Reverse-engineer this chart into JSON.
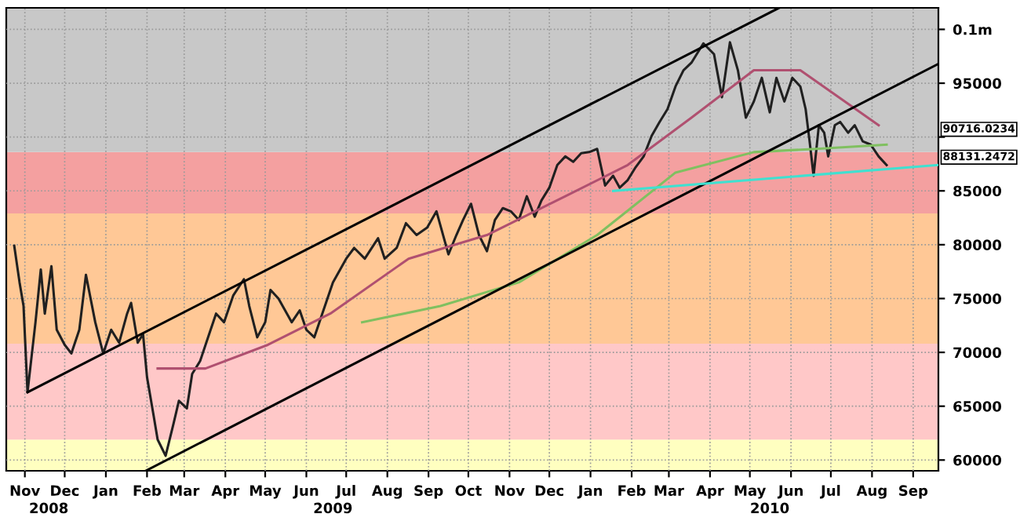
{
  "chart_data": {
    "type": "line",
    "x": [
      "2008-11-07",
      "2008-11-11",
      "2008-11-14",
      "2008-11-17",
      "2008-11-23",
      "2008-11-27",
      "2008-11-30",
      "2008-12-05",
      "2008-12-09",
      "2008-12-15",
      "2008-12-20",
      "2008-12-26",
      "2008-12-31",
      "2009-01-07",
      "2009-01-13",
      "2009-01-19",
      "2009-01-25",
      "2009-01-31",
      "2009-02-03",
      "2009-02-08",
      "2009-02-12",
      "2009-02-15",
      "2009-02-20",
      "2009-02-23",
      "2009-03-01",
      "2009-03-07",
      "2009-03-11",
      "2009-03-17",
      "2009-03-21",
      "2009-03-27",
      "2009-04-02",
      "2009-04-08",
      "2009-04-14",
      "2009-04-21",
      "2009-04-29",
      "2009-05-03",
      "2009-05-09",
      "2009-05-15",
      "2009-05-19",
      "2009-05-25",
      "2009-06-04",
      "2009-06-10",
      "2009-06-15",
      "2009-06-21",
      "2009-06-27",
      "2009-07-05",
      "2009-07-15",
      "2009-07-21",
      "2009-07-29",
      "2009-08-08",
      "2009-08-13",
      "2009-08-22",
      "2009-08-29",
      "2009-09-06",
      "2009-09-14",
      "2009-09-21",
      "2009-09-30",
      "2009-10-06",
      "2009-10-11",
      "2009-10-17",
      "2009-10-23",
      "2009-10-29",
      "2009-11-04",
      "2009-11-10",
      "2009-11-16",
      "2009-11-22",
      "2009-11-28",
      "2009-12-04",
      "2009-12-09",
      "2009-12-15",
      "2009-12-21",
      "2009-12-27",
      "2010-01-02",
      "2010-01-08",
      "2010-01-14",
      "2010-01-20",
      "2010-01-26",
      "2010-02-01",
      "2010-02-06",
      "2010-02-12",
      "2010-02-18",
      "2010-02-24",
      "2010-03-02",
      "2010-03-08",
      "2010-03-14",
      "2010-03-20",
      "2010-03-26",
      "2010-04-01",
      "2010-04-10",
      "2010-04-18",
      "2010-04-24",
      "2010-04-30",
      "2010-05-06",
      "2010-05-12",
      "2010-05-18",
      "2010-05-24",
      "2010-05-30",
      "2010-06-04",
      "2010-06-10",
      "2010-06-16",
      "2010-06-22",
      "2010-06-26",
      "2010-06-29",
      "2010-07-02",
      "2010-07-06",
      "2010-07-10",
      "2010-07-13",
      "2010-07-18",
      "2010-07-22",
      "2010-07-28",
      "2010-08-02",
      "2010-08-08",
      "2010-08-14",
      "2010-08-20",
      "2010-08-26"
    ],
    "series": [
      {
        "color": "#202020",
        "values": [
          79900,
          76500,
          74300,
          66300,
          72800,
          77700,
          73600,
          78000,
          72100,
          70700,
          69900,
          72100,
          77200,
          72800,
          69900,
          72100,
          70900,
          73600,
          74600,
          70900,
          71700,
          67700,
          64100,
          61900,
          60400,
          63400,
          65500,
          64800,
          68000,
          69200,
          71400,
          73600,
          72800,
          75300,
          76800,
          74300,
          71400,
          72800,
          75800,
          75000,
          72800,
          73900,
          72100,
          71400,
          73600,
          76500,
          78700,
          79700,
          78700,
          80600,
          78700,
          79700,
          82000,
          80900,
          81600,
          83100,
          79100,
          80900,
          82300,
          83800,
          80900,
          79400,
          82300,
          83400,
          83100,
          82300,
          84500,
          82600,
          84100,
          85300,
          87400,
          88200,
          87700,
          88500,
          88600,
          88900,
          85500,
          86400,
          85300,
          86000,
          87200,
          88200,
          90100,
          91400,
          92600,
          94700,
          96200,
          96900,
          98700,
          97700,
          93700,
          98800,
          96200,
          91800,
          93300,
          95500,
          92300,
          95500,
          93300,
          95500,
          94700,
          92600,
          89600,
          86400,
          91100,
          90400,
          88200,
          91100,
          91400,
          90400,
          91100,
          89600,
          89300,
          88200,
          87400
        ]
      },
      {
        "color": "#b05070",
        "x": [
          "2009-02-23",
          "2009-03-31",
          "2009-05-17",
          "2009-07-03",
          "2009-08-31",
          "2009-10-29",
          "2009-12-27",
          "2010-02-12",
          "2010-04-01",
          "2010-05-18",
          "2010-06-22",
          "2010-08-20"
        ],
        "values": [
          68500,
          68500,
          70700,
          73600,
          78700,
          80900,
          84500,
          87400,
          91800,
          96200,
          96200,
          91100
        ]
      },
      {
        "color": "#80c060",
        "x": [
          "2009-07-27",
          "2009-09-24",
          "2009-11-22",
          "2010-01-20",
          "2010-03-20",
          "2010-05-18",
          "2010-07-04",
          "2010-08-26"
        ],
        "values": [
          72800,
          74300,
          76500,
          80900,
          86700,
          88600,
          88900,
          89300
        ]
      },
      {
        "color": "#000000",
        "x": [
          "2008-11-17",
          "2010-06-06"
        ],
        "values": [
          66300,
          102000
        ]
      },
      {
        "color": "#000000",
        "x": [
          "2009-02-14",
          "2010-10-04"
        ],
        "values": [
          59000,
          96800
        ]
      },
      {
        "color": "#40e0d0",
        "x": [
          "2010-02-01",
          "2010-10-04"
        ],
        "values": [
          85000,
          87400
        ]
      }
    ],
    "bands": [
      {
        "axis": "y",
        "from": 59000,
        "to": 61900,
        "color": "#ffffc0"
      },
      {
        "axis": "y",
        "from": 61900,
        "to": 70800,
        "color": "#ffc8c8"
      },
      {
        "axis": "y",
        "from": 70800,
        "to": 82900,
        "color": "#ffc896"
      },
      {
        "axis": "y",
        "from": 82900,
        "to": 88600,
        "color": "#f4a0a0"
      },
      {
        "axis": "y",
        "from": 88600,
        "to": 102000,
        "color": "#c8c8c8"
      }
    ],
    "annotations": [
      {
        "text": "90716.0234",
        "x": "2010-10-04",
        "y": 90716
      },
      {
        "text": "88131.2472",
        "x": "2010-10-04",
        "y": 88131
      }
    ],
    "xlim": [
      "2008-11-01",
      "2010-10-04"
    ],
    "xticks": [
      {
        "value": "2008-11-15",
        "label": "Nov"
      },
      {
        "value": "2008-12-15",
        "label": "Dec"
      },
      {
        "value": "2009-01-15",
        "label": "Jan"
      },
      {
        "value": "2009-02-15",
        "label": "Feb"
      },
      {
        "value": "2009-03-15",
        "label": "Mar"
      },
      {
        "value": "2009-04-15",
        "label": "Apr"
      },
      {
        "value": "2009-05-15",
        "label": "May"
      },
      {
        "value": "2009-06-15",
        "label": "Jun"
      },
      {
        "value": "2009-07-15",
        "label": "Jul"
      },
      {
        "value": "2009-08-15",
        "label": "Aug"
      },
      {
        "value": "2009-09-15",
        "label": "Sep"
      },
      {
        "value": "2009-10-15",
        "label": "Oct"
      },
      {
        "value": "2009-11-15",
        "label": "Nov"
      },
      {
        "value": "2009-12-15",
        "label": "Dec"
      },
      {
        "value": "2010-01-15",
        "label": "Jan"
      },
      {
        "value": "2010-02-15",
        "label": "Feb"
      },
      {
        "value": "2010-03-15",
        "label": "Mar"
      },
      {
        "value": "2010-04-15",
        "label": "Apr"
      },
      {
        "value": "2010-05-15",
        "label": "May"
      },
      {
        "value": "2010-06-15",
        "label": "Jun"
      },
      {
        "value": "2010-07-15",
        "label": "Jul"
      },
      {
        "value": "2010-08-15",
        "label": "Aug"
      },
      {
        "value": "2010-09-15",
        "label": "Sep"
      }
    ],
    "x2lim": [
      "2008-11-01",
      "2010-10-04"
    ],
    "x2ticks": [
      {
        "value": "2008-12-03",
        "label": "2008"
      },
      {
        "value": "2009-07-05",
        "label": "2009"
      },
      {
        "value": "2010-05-30",
        "label": "2010"
      }
    ],
    "ylim": [
      59000,
      102000
    ],
    "yticks": [
      60000,
      65000,
      70000,
      75000,
      80000,
      85000,
      {
        "value": 90000,
        "label": null
      },
      95000,
      {
        "value": 100000,
        "label": "0.1m"
      }
    ],
    "grid": true,
    "legend": false
  }
}
